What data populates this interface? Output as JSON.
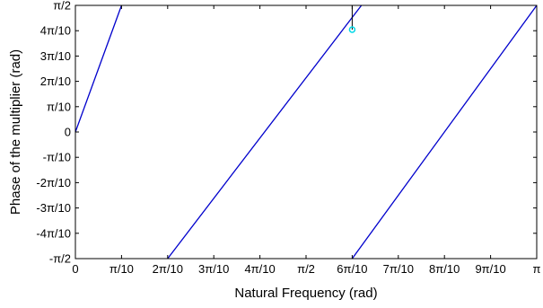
{
  "chart_data": {
    "type": "line",
    "xlabel": "Natural Frequency (rad)",
    "ylabel": "Phase of the multiplier (rad)",
    "xlim": [
      0,
      3.14159265
    ],
    "ylim": [
      -1.57079633,
      1.57079633
    ],
    "grid": false,
    "x_ticks": [
      {
        "value": 0,
        "label": "0"
      },
      {
        "value": 0.31415927,
        "label": "π/10"
      },
      {
        "value": 0.62831853,
        "label": "2π/10"
      },
      {
        "value": 0.9424778,
        "label": "3π/10"
      },
      {
        "value": 1.25663706,
        "label": "4π/10"
      },
      {
        "value": 1.57079633,
        "label": "π/2"
      },
      {
        "value": 1.88495559,
        "label": "6π/10"
      },
      {
        "value": 2.19911486,
        "label": "7π/10"
      },
      {
        "value": 2.51327412,
        "label": "8π/10"
      },
      {
        "value": 2.82743339,
        "label": "9π/10"
      },
      {
        "value": 3.14159265,
        "label": "π"
      }
    ],
    "y_ticks": [
      {
        "value": 1.57079633,
        "label": "π/2"
      },
      {
        "value": 1.25663706,
        "label": "4π/10"
      },
      {
        "value": 0.9424778,
        "label": "3π/10"
      },
      {
        "value": 0.62831853,
        "label": "2π/10"
      },
      {
        "value": 0.31415927,
        "label": "π/10"
      },
      {
        "value": 0,
        "label": "0"
      },
      {
        "value": -0.31415927,
        "label": "-π/10"
      },
      {
        "value": -0.62831853,
        "label": "-2π/10"
      },
      {
        "value": -0.9424778,
        "label": "-3π/10"
      },
      {
        "value": -1.25663706,
        "label": "-4π/10"
      },
      {
        "value": -1.57079633,
        "label": "-π/2"
      }
    ],
    "series": [
      {
        "color": "#0000cc",
        "segments": [
          [
            [
              0,
              0
            ],
            [
              0.31415927,
              1.57079633
            ]
          ],
          [
            [
              0.62831853,
              -1.57079633
            ],
            [
              1.94778745,
              1.57079633
            ]
          ],
          [
            [
              1.88495559,
              -1.57079633
            ],
            [
              3.14159265,
              1.57079633
            ]
          ]
        ]
      }
    ],
    "marker": {
      "x": 1.8849556,
      "y": 1.27,
      "color": "#00d8e8",
      "shape": "circle",
      "stem_color": "#000000"
    }
  }
}
